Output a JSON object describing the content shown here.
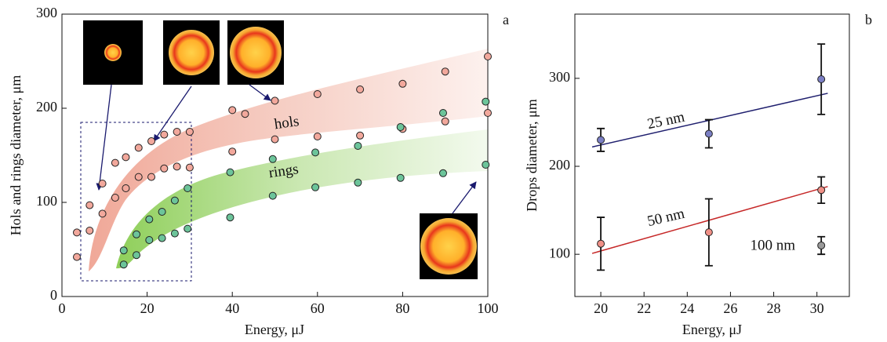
{
  "chart_data": [
    {
      "type": "scatter",
      "panel": "a",
      "xlabel": "Energy, μJ",
      "ylabel": "Hols and rings diameter, μm",
      "xlim": [
        0,
        100
      ],
      "ylim": [
        0,
        300
      ],
      "xticks": [
        0,
        20,
        40,
        60,
        80,
        100
      ],
      "yticks": [
        0,
        100,
        200,
        300
      ],
      "series": [
        {
          "name": "hols",
          "color": "#f2a89c",
          "x": [
            3.5,
            3.5,
            6.5,
            6.5,
            9.5,
            9.5,
            12.5,
            12.5,
            15,
            15,
            18,
            18,
            21,
            21,
            24,
            24,
            27,
            27,
            30,
            30,
            40,
            40,
            43,
            50,
            50,
            60,
            60,
            70,
            70,
            80,
            80,
            90,
            90,
            100,
            100
          ],
          "values": [
            42,
            68,
            97,
            70,
            120,
            88,
            142,
            105,
            148,
            115,
            158,
            127,
            165,
            127,
            172,
            136,
            175,
            138,
            175,
            137,
            198,
            154,
            194,
            208,
            167,
            215,
            170,
            220,
            171,
            226,
            178,
            239,
            186,
            255,
            195
          ]
        },
        {
          "name": "rings",
          "color": "#6cc49a",
          "x": [
            14.5,
            14.5,
            17.5,
            17.5,
            20.5,
            20.5,
            23.5,
            23.5,
            26.5,
            26.5,
            29.5,
            29.5,
            39.5,
            39.5,
            49.5,
            49.5,
            59.5,
            59.5,
            69.5,
            69.5,
            79.5,
            79.5,
            89.5,
            89.5,
            99.5,
            99.5
          ],
          "values": [
            34,
            49,
            44,
            66,
            60,
            82,
            62,
            90,
            67,
            102,
            72,
            115,
            84,
            132,
            107,
            146,
            116,
            153,
            121,
            160,
            126,
            180,
            131,
            195,
            140,
            207
          ]
        }
      ]
    },
    {
      "type": "errorbar",
      "panel": "b",
      "xlabel": "Energy, μJ",
      "ylabel": "Drops diameter, μm",
      "xlim": [
        18.8,
        31.5
      ],
      "ylim": [
        52,
        373
      ],
      "xticks": [
        20,
        22,
        24,
        26,
        28,
        30
      ],
      "yticks": [
        100,
        200,
        300
      ],
      "series": [
        {
          "name": "25 nm",
          "color": "#7b7fc4",
          "line_color": "#1f1f6e",
          "x": [
            20,
            25,
            30.2
          ],
          "values": [
            230,
            237,
            299
          ],
          "errors": [
            13,
            16,
            40
          ],
          "fit": {
            "x": [
              19.6,
              30.5
            ],
            "values": [
              222,
              283
            ]
          }
        },
        {
          "name": "50 nm",
          "color": "#ef8f86",
          "line_color": "#c62828",
          "x": [
            20,
            25,
            30.2
          ],
          "values": [
            112,
            125,
            173
          ],
          "errors": [
            30,
            38,
            15
          ],
          "fit": {
            "x": [
              19.6,
              30.5
            ],
            "values": [
              101,
              177
            ]
          }
        },
        {
          "name": "100 nm",
          "color": "#9a9a9a",
          "x": [
            30.2
          ],
          "values": [
            110
          ],
          "errors": [
            10
          ]
        }
      ]
    }
  ]
}
